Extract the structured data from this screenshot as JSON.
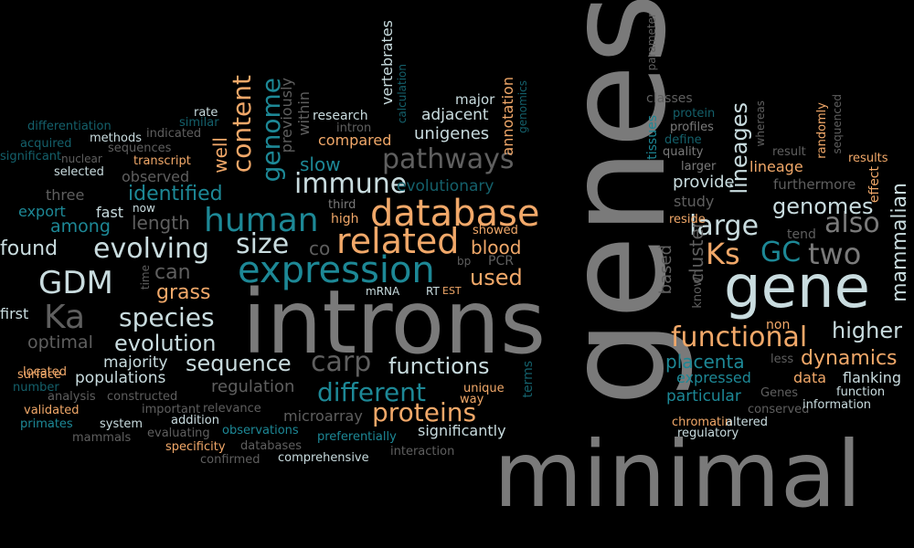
{
  "words": {
    "genes": "genes",
    "minimal": "minimal",
    "introns": "introns",
    "gene": "gene",
    "expression": "expression",
    "database": "database",
    "related": "related",
    "human": "human",
    "evolving": "evolving",
    "size": "size",
    "pathways": "pathways",
    "immune": "immune",
    "functional": "functional",
    "GDM": "GDM",
    "Ka": "Ka",
    "Ks": "Ks",
    "GC": "GC",
    "two": "two",
    "also": "also",
    "large": "large",
    "proteins": "proteins",
    "different": "different",
    "sequence": "sequence",
    "species": "species",
    "evolution": "evolution",
    "carp": "carp",
    "functions": "functions",
    "identified": "identified",
    "content": "content",
    "genome": "genome",
    "genomes": "genomes",
    "lineages": "lineages",
    "higher": "higher",
    "dynamics": "dynamics",
    "placenta": "placenta",
    "mammalian": "mammalian",
    "cluster": "cluster",
    "based": "based",
    "found": "found",
    "blood": "blood",
    "used": "used",
    "grass": "grass",
    "can": "can",
    "co": "co",
    "slow": "slow",
    "compared": "compared",
    "unigenes": "unigenes",
    "adjacent": "adjacent",
    "evolutionary": "evolutionary",
    "among": "among",
    "length": "length",
    "regulation": "regulation",
    "significantly": "significantly",
    "populations": "populations",
    "majority": "majority",
    "optimal": "optimal",
    "first": "first",
    "expressed": "expressed",
    "particular": "particular",
    "data": "data",
    "flanking": "flanking",
    "provide": "provide",
    "study": "study",
    "lineage": "lineage",
    "furthermore": "furthermore",
    "tend": "tend",
    "effect": "effect",
    "reside": "reside",
    "results": "results",
    "sequenced": "sequenced",
    "randomly": "randomly",
    "whereas": "whereas",
    "result": "result",
    "classes": "classes",
    "protein": "protein",
    "profiles": "profiles",
    "define": "define",
    "quality": "quality",
    "larger": "larger",
    "tissues": "tissues",
    "parameter": "parameter",
    "major": "major",
    "annotation": "annotation",
    "genomics": "genomics",
    "vertebrates": "vertebrates",
    "calculation": "calculation",
    "research": "research",
    "intron": "intron",
    "within": "within",
    "previously": "previously",
    "well": "well",
    "observed": "observed",
    "selected": "selected",
    "nuclear": "nuclear",
    "sequences": "sequences",
    "methods": "methods",
    "indicated": "indicated",
    "similar": "similar",
    "rate": "rate",
    "transcript": "transcript",
    "differentiation": "differentiation",
    "acquired": "acquired",
    "significant": "significant",
    "three": "three",
    "export": "export",
    "fast": "fast",
    "now": "now",
    "third": "third",
    "high": "high",
    "showed": "showed",
    "bp": "bp",
    "PCR": "PCR",
    "mRNA": "mRNA",
    "RT": "RT",
    "EST": "EST",
    "time": "time",
    "located": "located",
    "surface": "surface",
    "number": "number",
    "analysis": "analysis",
    "constructed": "constructed",
    "validated": "validated",
    "primates": "primates",
    "system": "system",
    "mammals": "mammals",
    "evaluating": "evaluating",
    "observations": "observations",
    "important": "important",
    "relevance": "relevance",
    "addition": "addition",
    "specificity": "specificity",
    "databases": "databases",
    "confirmed": "confirmed",
    "comprehensive": "comprehensive",
    "microarray": "microarray",
    "preferentially": "preferentially",
    "interaction": "interaction",
    "unique": "unique",
    "way": "way",
    "terms": "terms",
    "non": "non",
    "less": "less",
    "known": "known",
    "Genes": "Genes",
    "conserved": "conserved",
    "chromatin": "chromatin",
    "altered": "altered",
    "regulatory": "regulatory",
    "function": "function",
    "information": "information"
  },
  "colors": {
    "background": "#000000",
    "gray": "#7a7a7a",
    "dark_gray": "#5f5f5f",
    "teal": "#1d8896",
    "dark_teal": "#14606b",
    "white": "#c9dcdf",
    "orange": "#f1a869"
  }
}
